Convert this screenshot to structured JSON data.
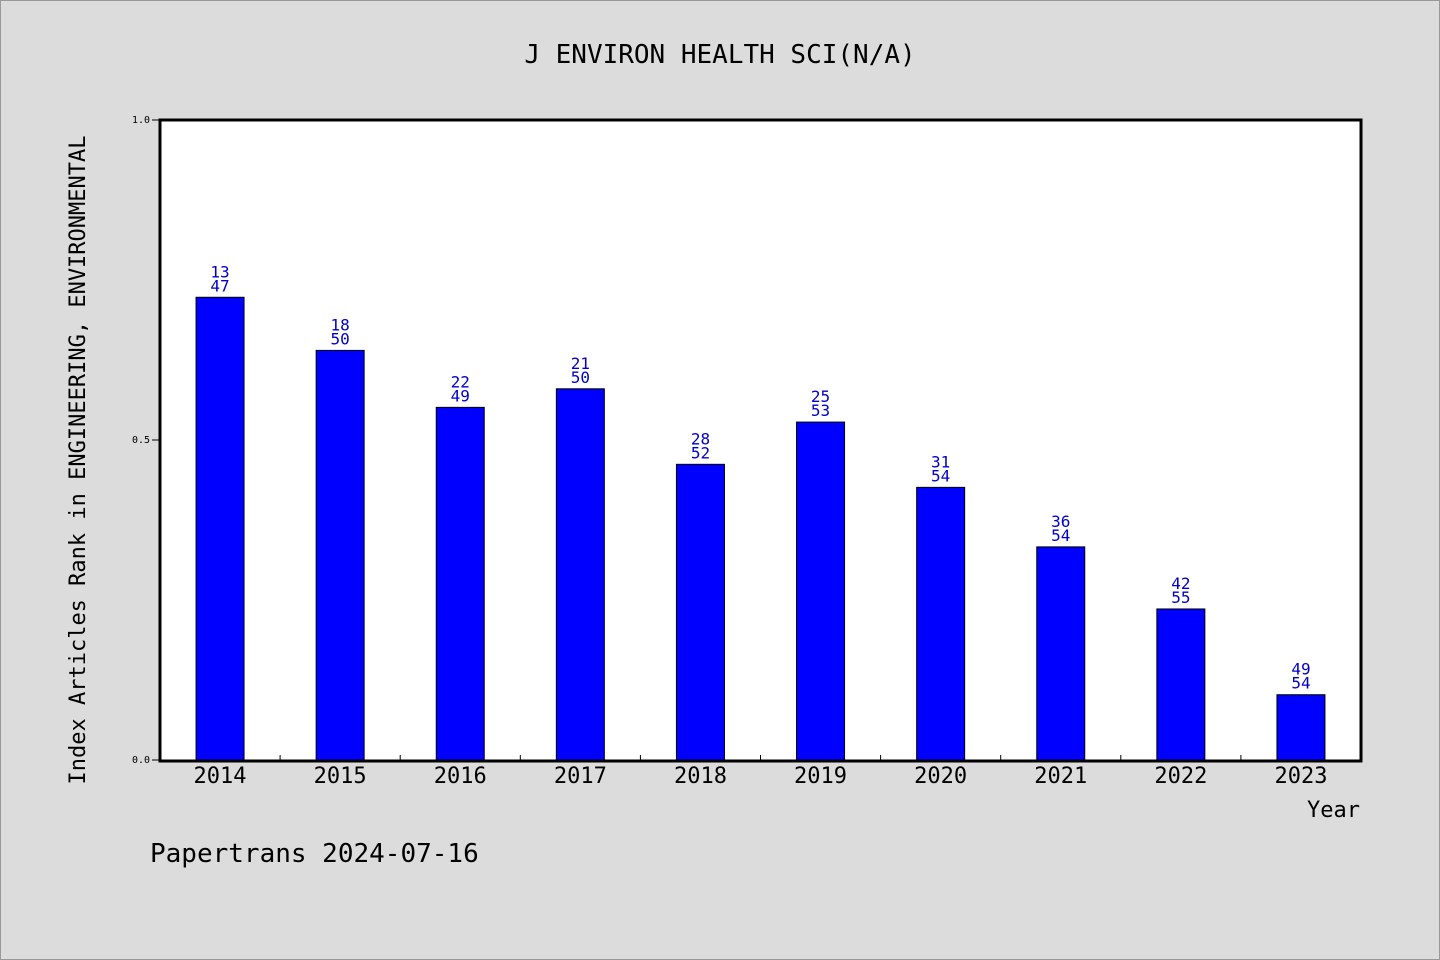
{
  "chart_data": {
    "type": "bar",
    "title": "J ENVIRON HEALTH SCI(N/A)",
    "xlabel": "Year",
    "ylabel": "Index Articles Rank in ENGINEERING, ENVIRONMENTAL",
    "ylim": [
      0.0,
      1.0
    ],
    "yticks": [
      "0.0",
      "0.5",
      "1.0"
    ],
    "categories": [
      "2014",
      "2015",
      "2016",
      "2017",
      "2018",
      "2019",
      "2020",
      "2021",
      "2022",
      "2023"
    ],
    "values": [
      0.723,
      0.64,
      0.551,
      0.58,
      0.462,
      0.528,
      0.426,
      0.333,
      0.236,
      0.102
    ],
    "labels_top": [
      "13",
      "18",
      "22",
      "21",
      "28",
      "25",
      "31",
      "36",
      "42",
      "49"
    ],
    "labels_bottom": [
      "47",
      "50",
      "49",
      "50",
      "52",
      "53",
      "54",
      "54",
      "55",
      "54"
    ],
    "bar_color": "#0000ff",
    "label_color": "#0000cc",
    "grid": false
  },
  "footer": "Papertrans 2024-07-16"
}
